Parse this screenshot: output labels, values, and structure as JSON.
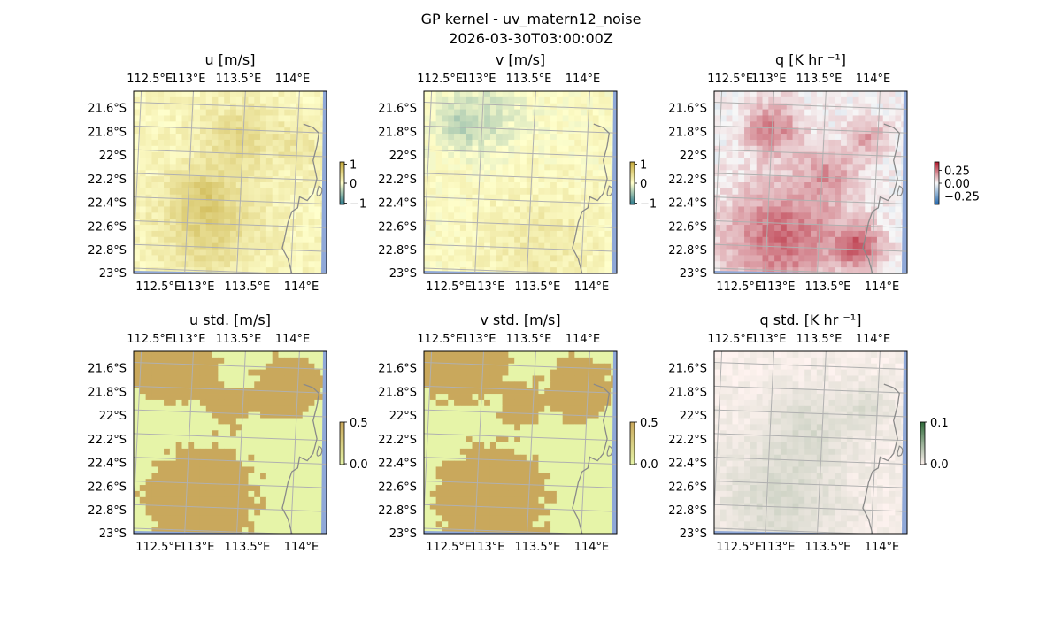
{
  "figure": {
    "title": "GP kernel - uv_matern12_noise",
    "subtitle": "2026-03-30T03:00:00Z"
  },
  "colors": {
    "ocean": "#8fa8d8",
    "land": "#f4f4f4",
    "coast": "#8a8a8a",
    "grid": "#b0b0b0",
    "u_v_low": "#2b7a8c",
    "u_v_mid": "#ffffcc",
    "u_v_high": "#c4a93a",
    "q_low": "#2166ac",
    "q_mid": "#f7f7f7",
    "q_high": "#b2182b",
    "std_low": "#e6f4a8",
    "std_high": "#c9a85c",
    "qstd_low": "#fff3f0",
    "qstd_high": "#2f6b3a"
  },
  "chart_data": [
    {
      "type": "heatmap",
      "title": "u [m/s]",
      "x_ticks": [
        "112.5°E",
        "113°E",
        "113.5°E",
        "114°E"
      ],
      "y_ticks": [
        "21.6°S",
        "21.8°S",
        "22°S",
        "22.2°S",
        "22.4°S",
        "22.6°S",
        "22.8°S",
        "23°S"
      ],
      "colorbar": {
        "ticks": [
          "1",
          "0",
          "−1"
        ],
        "range": [
          -1,
          1
        ],
        "colormap": "teal-yellow-olive"
      },
      "field": {
        "base": 0.1,
        "blobs": [
          [
            0.55,
            0.25,
            0.18,
            0.35
          ],
          [
            0.4,
            0.75,
            0.25,
            0.4
          ],
          [
            0.35,
            0.55,
            0.15,
            0.3
          ],
          [
            0.85,
            0.3,
            0.12,
            0.2
          ]
        ]
      }
    },
    {
      "type": "heatmap",
      "title": "v [m/s]",
      "x_ticks": [
        "112.5°E",
        "113°E",
        "113.5°E",
        "114°E"
      ],
      "y_ticks": [
        "21.6°S",
        "21.8°S",
        "22°S",
        "22.2°S",
        "22.4°S",
        "22.6°S",
        "22.8°S",
        "23°S"
      ],
      "colorbar": {
        "ticks": [
          "1",
          "0",
          "−1"
        ],
        "range": [
          -1,
          1
        ],
        "colormap": "teal-yellow-olive"
      },
      "field": {
        "base": 0.05,
        "blobs": [
          [
            0.3,
            0.15,
            0.2,
            -0.3
          ],
          [
            0.6,
            0.85,
            0.3,
            0.2
          ],
          [
            0.15,
            0.2,
            0.1,
            -0.2
          ]
        ]
      }
    },
    {
      "type": "heatmap",
      "title": "q [K hr ⁻¹]",
      "x_ticks": [
        "112.5°E",
        "113°E",
        "113.5°E",
        "114°E"
      ],
      "y_ticks": [
        "21.6°S",
        "21.8°S",
        "22°S",
        "22.2°S",
        "22.4°S",
        "22.6°S",
        "22.8°S",
        "23°S"
      ],
      "colorbar": {
        "ticks": [
          "0.25",
          "0.00",
          "−0.25"
        ],
        "range": [
          -0.4,
          0.4
        ],
        "colormap": "RdBu_r"
      },
      "field": {
        "base": 0.0,
        "blobs": [
          [
            0.35,
            0.8,
            0.3,
            0.25
          ],
          [
            0.3,
            0.2,
            0.15,
            0.2
          ],
          [
            0.6,
            0.45,
            0.15,
            0.15
          ],
          [
            0.8,
            0.25,
            0.1,
            0.15
          ],
          [
            0.75,
            0.85,
            0.12,
            0.25
          ]
        ]
      }
    },
    {
      "type": "heatmap",
      "title": "u std. [m/s]",
      "x_ticks": [
        "112.5°E",
        "113°E",
        "113.5°E",
        "114°E"
      ],
      "y_ticks": [
        "21.6°S",
        "21.8°S",
        "22°S",
        "22.2°S",
        "22.4°S",
        "22.6°S",
        "22.8°S",
        "23°S"
      ],
      "colorbar": {
        "ticks": [
          "0.5",
          "0.0"
        ],
        "range": [
          0,
          0.5
        ],
        "colormap": "yellowgreen-tan"
      },
      "field": {
        "base": 0.15,
        "blobs": [
          [
            0.35,
            0.8,
            0.25,
            0.3
          ],
          [
            0.2,
            0.05,
            0.2,
            0.3
          ],
          [
            0.8,
            0.2,
            0.15,
            0.3
          ],
          [
            0.5,
            0.3,
            0.1,
            0.2
          ]
        ]
      }
    },
    {
      "type": "heatmap",
      "title": "v std. [m/s]",
      "x_ticks": [
        "112.5°E",
        "113°E",
        "113.5°E",
        "114°E"
      ],
      "y_ticks": [
        "21.6°S",
        "21.8°S",
        "22°S",
        "22.2°S",
        "22.4°S",
        "22.6°S",
        "22.8°S",
        "23°S"
      ],
      "colorbar": {
        "ticks": [
          "0.5",
          "0.0"
        ],
        "range": [
          0,
          0.5
        ],
        "colormap": "yellowgreen-tan"
      },
      "field": {
        "base": 0.15,
        "blobs": [
          [
            0.35,
            0.8,
            0.25,
            0.3
          ],
          [
            0.2,
            0.05,
            0.2,
            0.3
          ],
          [
            0.8,
            0.2,
            0.15,
            0.3
          ],
          [
            0.5,
            0.3,
            0.1,
            0.2
          ]
        ]
      }
    },
    {
      "type": "heatmap",
      "title": "q std. [K hr ⁻¹]",
      "x_ticks": [
        "112.5°E",
        "113°E",
        "113.5°E",
        "114°E"
      ],
      "y_ticks": [
        "21.6°S",
        "21.8°S",
        "22°S",
        "22.2°S",
        "22.4°S",
        "22.6°S",
        "22.8°S",
        "23°S"
      ],
      "colorbar": {
        "ticks": [
          "0.1",
          "0.0"
        ],
        "range": [
          0,
          0.1
        ],
        "colormap": "pink-green"
      },
      "field": {
        "base": 0.005,
        "blobs": [
          [
            0.35,
            0.8,
            0.3,
            0.02
          ],
          [
            0.5,
            0.4,
            0.2,
            0.015
          ],
          [
            0.8,
            0.3,
            0.12,
            0.015
          ]
        ]
      }
    }
  ]
}
